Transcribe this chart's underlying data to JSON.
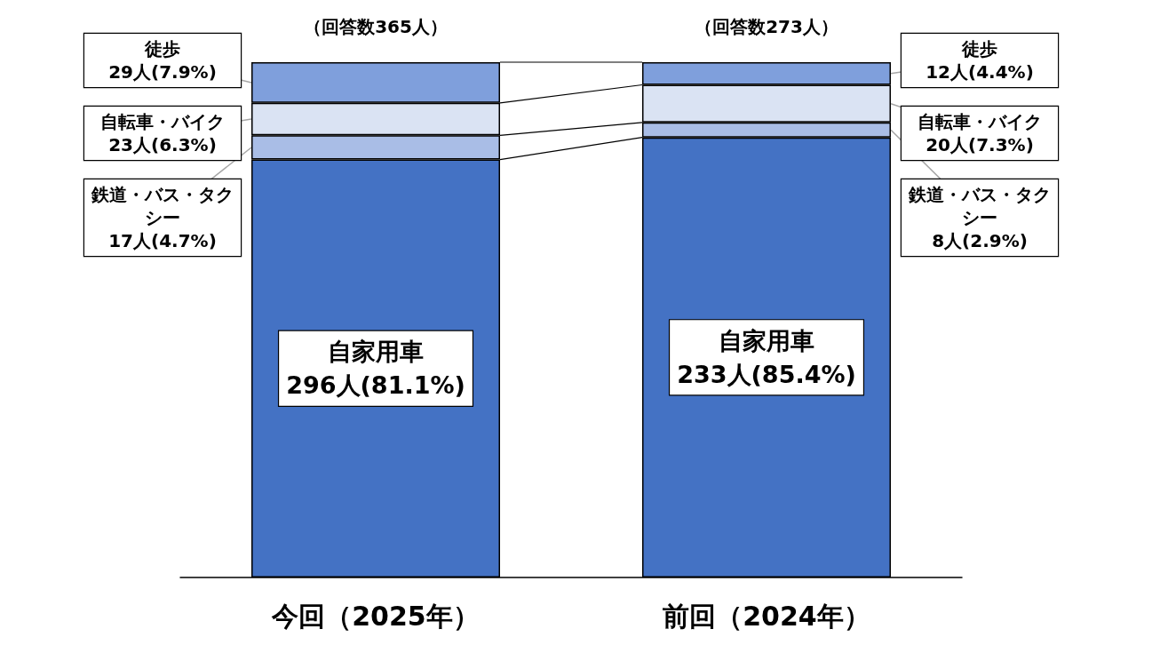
{
  "chart_data": {
    "type": "bar",
    "stacked": true,
    "categories": [
      "今回（2025年）",
      "前回（2024年）"
    ],
    "series": [
      {
        "name": "自家用車",
        "color": "#4472c4",
        "values": [
          81.1,
          85.4
        ],
        "value_labels": [
          "296人(81.1%)",
          "233人(85.4%)"
        ]
      },
      {
        "name": "鉄道・バス・タクシー",
        "color": "#a9bde6",
        "values": [
          4.7,
          2.9
        ],
        "value_labels": [
          "17人(4.7%)",
          "8人(2.9%)"
        ]
      },
      {
        "name": "自転車・バイク",
        "color": "#dae3f3",
        "values": [
          6.3,
          7.3
        ],
        "value_labels": [
          "23人(6.3%)",
          "20人(7.3%)"
        ]
      },
      {
        "name": "徒歩",
        "color": "#7f9fdc",
        "values": [
          7.9,
          4.4
        ],
        "value_labels": [
          "29人(7.9%)",
          "12人(4.4%)"
        ]
      }
    ],
    "annotations": [
      "（回答数365人）",
      "（回答数273人）"
    ],
    "grid": false,
    "legend": false
  }
}
